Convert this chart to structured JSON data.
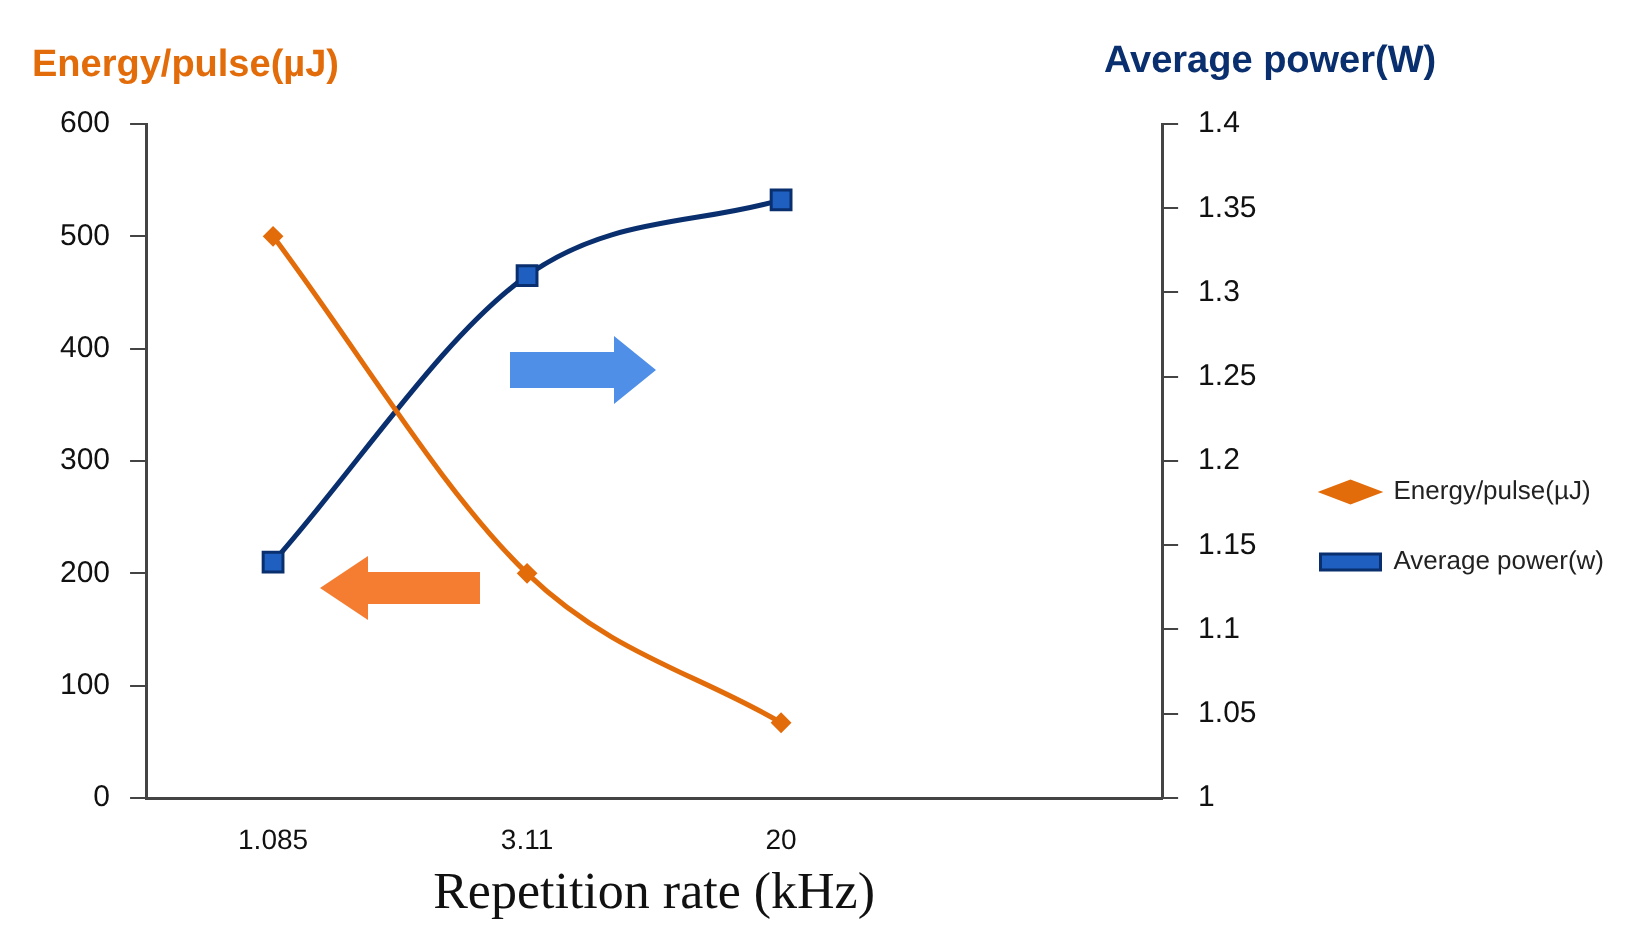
{
  "chart_data": {
    "type": "line",
    "xlabel": "Repetition rate (kHz)",
    "ylabel": "Energy/pulse(µJ)",
    "y2label": "Average power(W)",
    "categories": [
      null,
      "1.085",
      null,
      "3.11",
      null,
      "20",
      null,
      null,
      null
    ],
    "series": [
      {
        "name": "Energy/pulse(µJ)",
        "color": "#e36c0a",
        "marker": "diamond",
        "values": [
          null,
          500,
          null,
          200,
          null,
          67,
          null,
          null,
          null
        ]
      },
      {
        "name": "Average power(w)",
        "color": "#1f5fbf",
        "marker": "square",
        "axis": "y2",
        "values": [
          null,
          1.14,
          null,
          1.31,
          null,
          1.355,
          null,
          null,
          null
        ]
      }
    ],
    "ylim": [
      0,
      600
    ],
    "yticks": [
      0,
      100,
      200,
      300,
      400,
      500,
      600
    ],
    "y2lim": [
      1,
      1.4
    ],
    "y2ticks": [
      1,
      1.05,
      1.1,
      1.15,
      1.2,
      1.25,
      1.3,
      1.35,
      1.4
    ],
    "grid": false,
    "legend": "right"
  }
}
